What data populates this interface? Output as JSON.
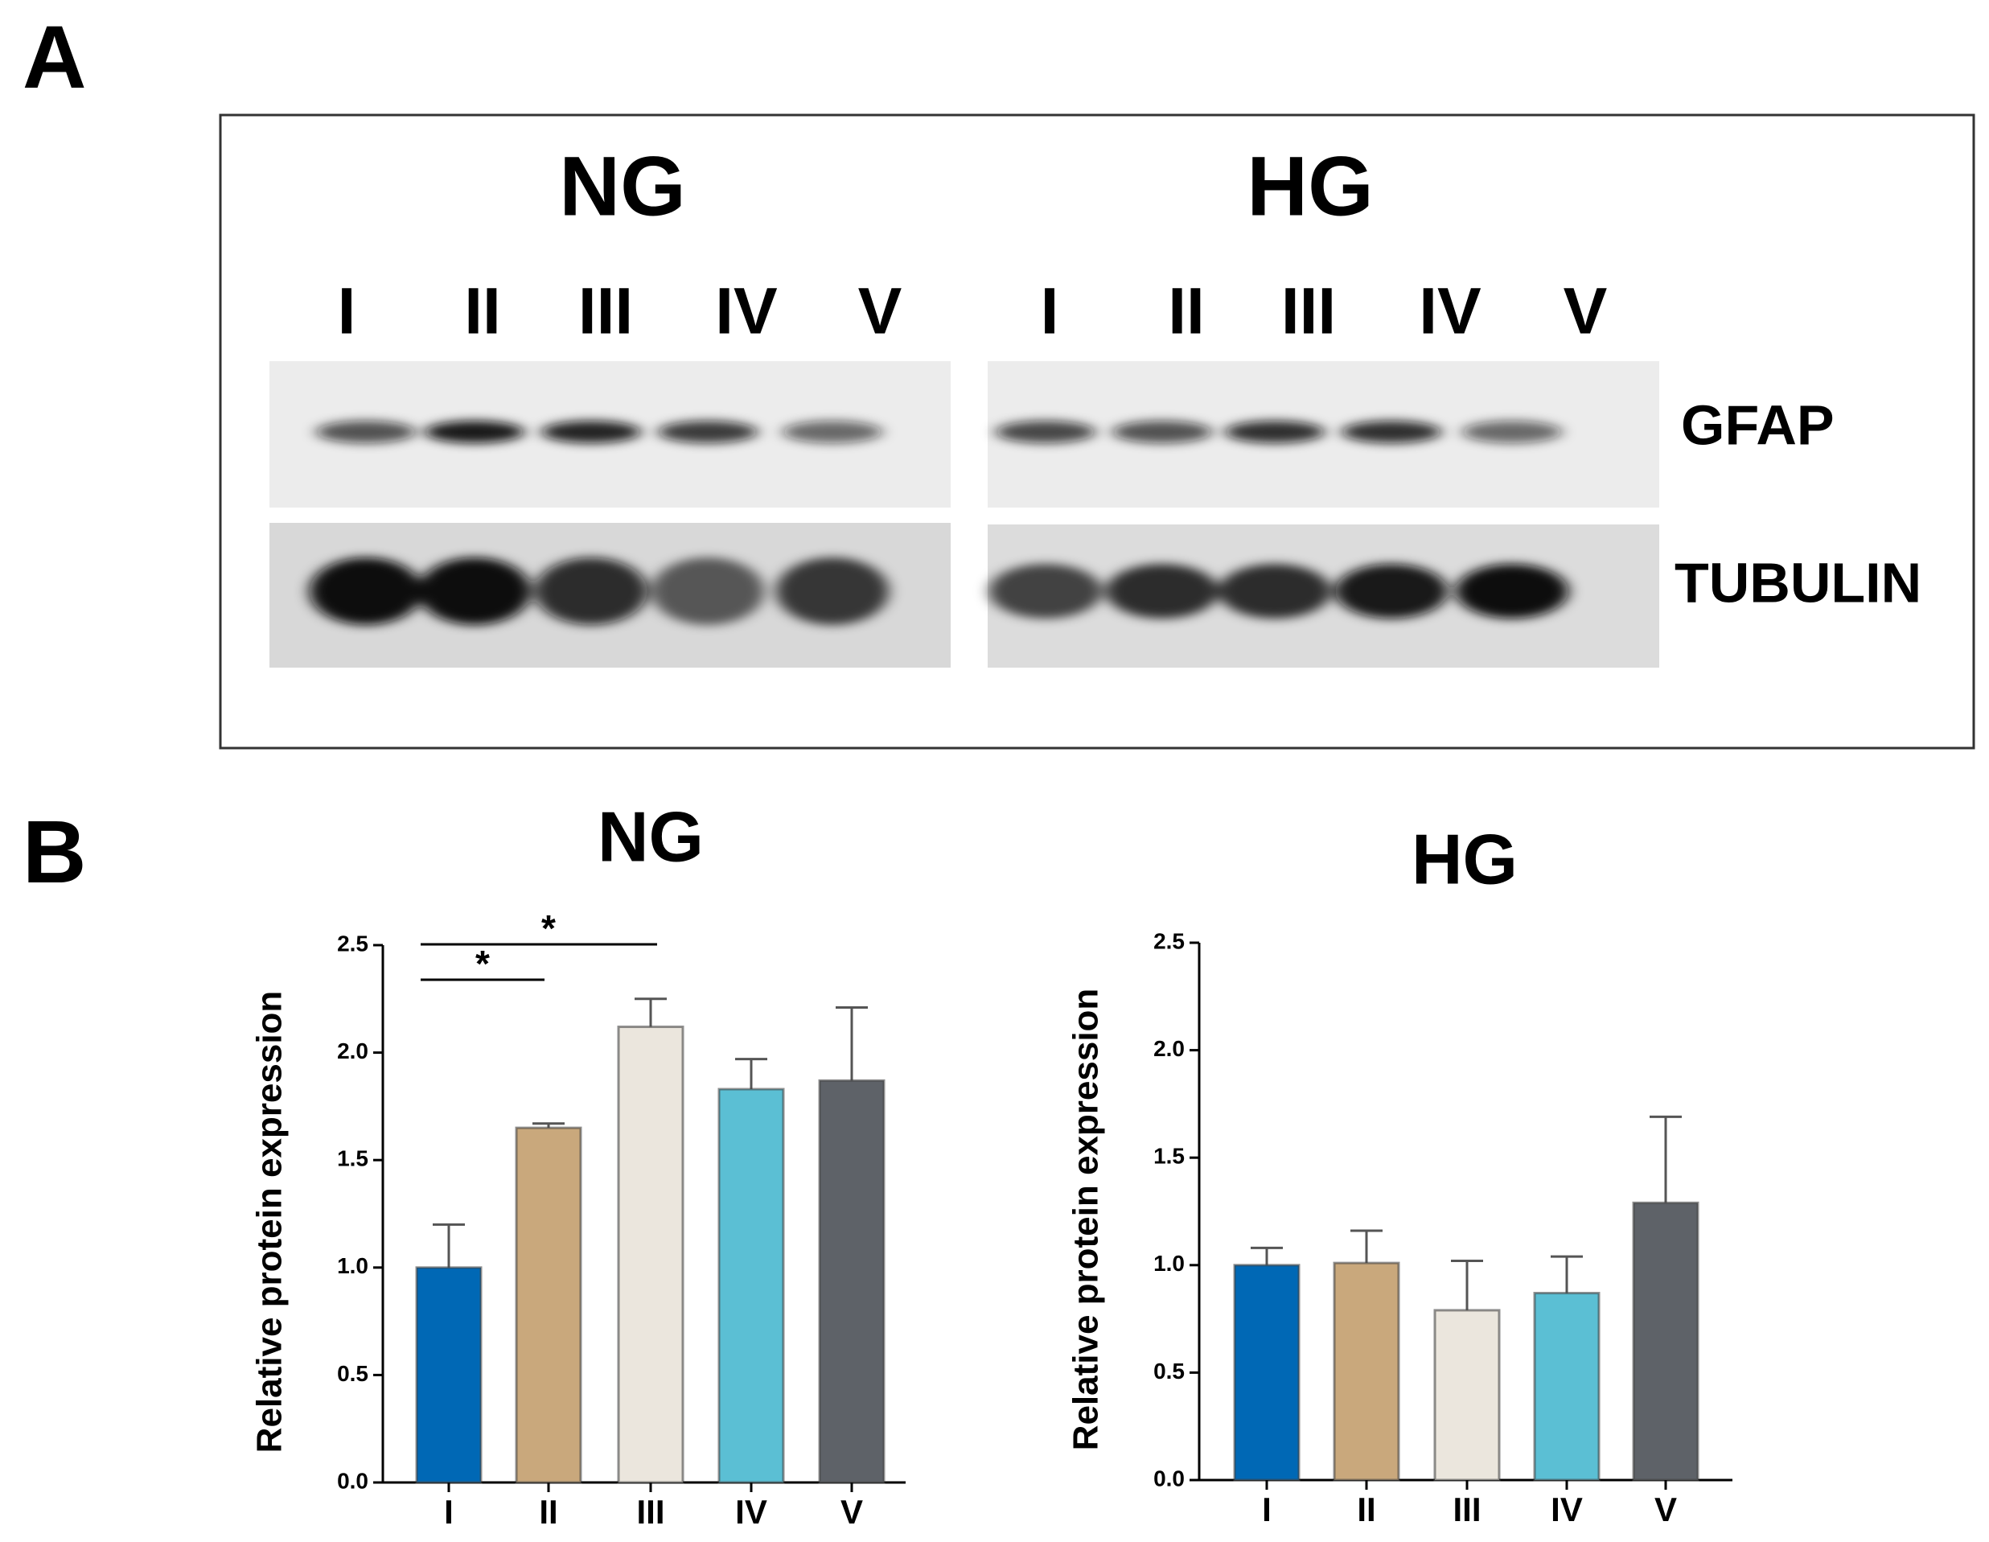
{
  "panel_a": {
    "label": "A",
    "groups": [
      {
        "title": "NG",
        "lanes": [
          "I",
          "II",
          "III",
          "IV",
          "V"
        ]
      },
      {
        "title": "HG",
        "lanes": [
          "I",
          "II",
          "III",
          "IV",
          "V"
        ]
      }
    ],
    "rows": [
      "GFAP",
      "TUBULIN"
    ]
  },
  "panel_b": {
    "label": "B"
  },
  "chart_data": [
    {
      "type": "bar",
      "title": "NG",
      "ylabel": "Relative protein expression",
      "categories": [
        "I",
        "II",
        "III",
        "IV",
        "V"
      ],
      "values": [
        1.0,
        1.65,
        2.12,
        1.83,
        1.87
      ],
      "errors": [
        0.2,
        0.02,
        0.13,
        0.14,
        0.34
      ],
      "colors": [
        "#0068b5",
        "#c9a87c",
        "#ebe6dd",
        "#5bbfd4",
        "#5e6268"
      ],
      "ylim": [
        0,
        2.5
      ],
      "yticks": [
        {
          "value": 0,
          "label": "0.0"
        },
        {
          "value": 0.5,
          "label": "0.5"
        },
        {
          "value": 1,
          "label": "1.0"
        },
        {
          "value": 1.5,
          "label": "1.5"
        },
        {
          "value": 2,
          "label": "2.0"
        },
        {
          "value": 2.5,
          "label": "2.5"
        }
      ],
      "annotations": [
        "*",
        "*"
      ]
    },
    {
      "type": "bar",
      "title": "HG",
      "ylabel": "Relative protein expression",
      "categories": [
        "I",
        "II",
        "III",
        "IV",
        "V"
      ],
      "values": [
        1.0,
        1.01,
        0.79,
        0.87,
        1.29
      ],
      "errors": [
        0.08,
        0.15,
        0.23,
        0.17,
        0.4
      ],
      "colors": [
        "#0068b5",
        "#c9a87c",
        "#ebe6dd",
        "#5bbfd4",
        "#5e6268"
      ],
      "ylim": [
        0,
        2.5
      ],
      "yticks": [
        {
          "value": 0,
          "label": "0.0"
        },
        {
          "value": 0.5,
          "label": "0.5"
        },
        {
          "value": 1,
          "label": "1.0"
        },
        {
          "value": 1.5,
          "label": "1.5"
        },
        {
          "value": 2,
          "label": "2.0"
        },
        {
          "value": 2.5,
          "label": "2.5"
        }
      ]
    }
  ]
}
